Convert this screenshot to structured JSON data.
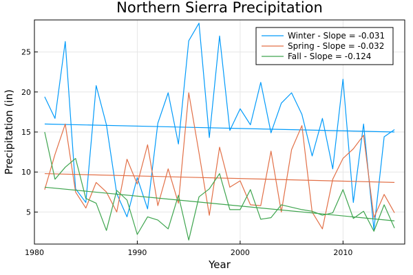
{
  "chart_data": {
    "type": "line",
    "title": "Northern Sierra Precipitation",
    "xlabel": "Year",
    "ylabel": "Precipitation (in)",
    "xlim": [
      1980,
      2016
    ],
    "ylim": [
      1.0,
      29.0
    ],
    "x_ticks": [
      1980,
      1990,
      2000,
      2010
    ],
    "y_ticks": [
      5,
      10,
      15,
      20,
      25
    ],
    "grid": true,
    "legend_position": "top-right",
    "x": [
      1981,
      1982,
      1983,
      1984,
      1985,
      1986,
      1987,
      1988,
      1989,
      1990,
      1991,
      1992,
      1993,
      1994,
      1995,
      1996,
      1997,
      1998,
      1999,
      2000,
      2001,
      2002,
      2003,
      2004,
      2005,
      2006,
      2007,
      2008,
      2009,
      2010,
      2011,
      2012,
      2013,
      2014,
      2015
    ],
    "series": [
      {
        "name": "Winter - Slope = -0.031",
        "color": "#009AFA",
        "values": [
          19.4,
          16.7,
          26.3,
          7.9,
          6.2,
          20.8,
          15.9,
          7.3,
          4.4,
          9.3,
          5.4,
          16.1,
          19.9,
          13.5,
          26.4,
          28.6,
          14.3,
          27.0,
          15.2,
          17.9,
          15.9,
          21.2,
          14.9,
          18.6,
          19.9,
          17.2,
          12.0,
          16.7,
          10.4,
          21.6,
          6.2,
          16.0,
          2.8,
          14.4,
          15.3
        ],
        "trend": [
          16.0,
          15.0
        ]
      },
      {
        "name": "Spring - Slope = -0.032",
        "color": "#E26F46",
        "values": [
          7.8,
          12.2,
          16.0,
          7.5,
          5.5,
          8.7,
          7.5,
          5.0,
          11.6,
          8.5,
          13.4,
          5.8,
          10.4,
          6.1,
          19.9,
          12.4,
          4.6,
          13.1,
          8.1,
          8.9,
          5.9,
          5.8,
          12.6,
          5.0,
          12.8,
          15.8,
          5.0,
          2.9,
          9.1,
          11.7,
          12.9,
          14.6,
          4.3,
          7.2,
          4.9
        ],
        "trend": [
          9.8,
          8.7
        ]
      },
      {
        "name": "Fall - Slope = -0.124",
        "color": "#3DA44D",
        "values": [
          15.0,
          9.1,
          10.6,
          11.7,
          6.7,
          6.1,
          2.7,
          7.7,
          6.5,
          2.2,
          4.4,
          4.0,
          2.9,
          7.1,
          1.5,
          6.9,
          7.9,
          9.8,
          5.3,
          5.3,
          7.8,
          4.1,
          4.3,
          5.9,
          5.6,
          5.3,
          5.1,
          4.6,
          4.9,
          7.8,
          4.2,
          5.1,
          2.6,
          5.9,
          3.0
        ],
        "trend": [
          8.1,
          3.9
        ]
      }
    ]
  }
}
